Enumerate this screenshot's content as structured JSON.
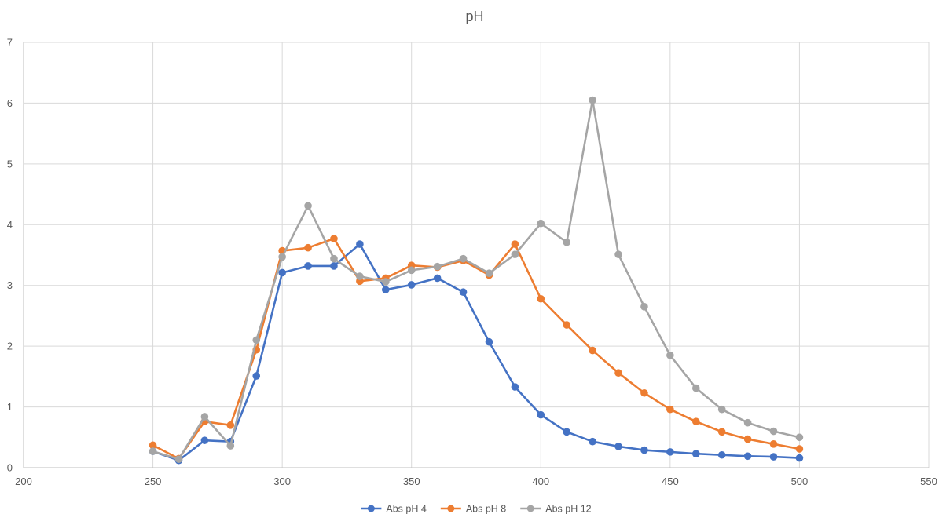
{
  "chart_data": {
    "type": "scatter",
    "title": "pH",
    "xlabel": "",
    "ylabel": "",
    "xlim": [
      200,
      550
    ],
    "ylim": [
      0,
      7
    ],
    "x_ticks": [
      200,
      250,
      300,
      350,
      400,
      450,
      500,
      550
    ],
    "y_ticks": [
      0,
      1,
      2,
      3,
      4,
      5,
      6,
      7
    ],
    "grid": true,
    "legend_position": "bottom",
    "x": [
      250,
      260,
      270,
      280,
      290,
      300,
      310,
      320,
      330,
      340,
      350,
      360,
      370,
      380,
      390,
      400,
      410,
      420,
      430,
      440,
      450,
      460,
      470,
      480,
      490,
      500
    ],
    "series": [
      {
        "name": "Abs pH 4",
        "color": "#4472C4",
        "values": [
          0.27,
          0.12,
          0.45,
          0.43,
          1.51,
          3.21,
          3.32,
          3.32,
          3.68,
          2.93,
          3.01,
          3.12,
          2.89,
          2.07,
          1.33,
          0.87,
          0.59,
          0.43,
          0.35,
          0.29,
          0.26,
          0.23,
          0.21,
          0.19,
          0.18,
          0.16
        ]
      },
      {
        "name": "Abs pH 8",
        "color": "#ED7D31",
        "values": [
          0.37,
          0.15,
          0.76,
          0.7,
          1.94,
          3.57,
          3.62,
          3.77,
          3.07,
          3.12,
          3.33,
          3.3,
          3.41,
          3.17,
          3.68,
          2.78,
          2.35,
          1.93,
          1.56,
          1.23,
          0.96,
          0.76,
          0.59,
          0.47,
          0.39,
          0.31
        ]
      },
      {
        "name": "Abs pH 12",
        "color": "#A5A5A5",
        "values": [
          0.27,
          0.14,
          0.84,
          0.36,
          2.1,
          3.47,
          4.31,
          3.44,
          3.15,
          3.06,
          3.25,
          3.31,
          3.44,
          3.2,
          3.51,
          4.02,
          3.71,
          6.05,
          3.51,
          2.65,
          1.85,
          1.31,
          0.96,
          0.74,
          0.6,
          0.5
        ]
      }
    ]
  }
}
